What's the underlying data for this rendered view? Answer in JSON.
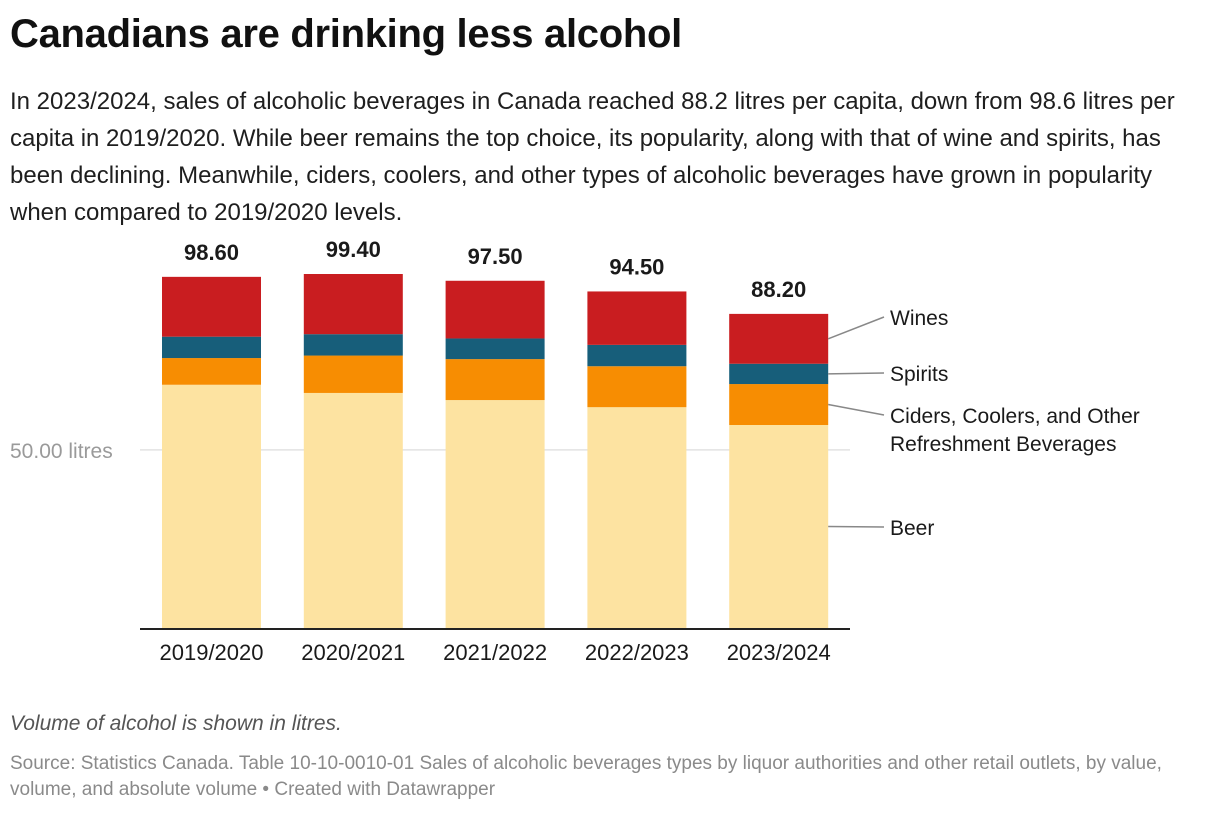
{
  "header": {
    "title": "Canadians are drinking less alcohol",
    "subtitle": "In 2023/2024, sales of alcoholic beverages in Canada reached 88.2 litres per capita, down from 98.6 litres per capita in 2019/2020. While beer remains the top choice, its popularity, along with that of wine and spirits, has been declining. Meanwhile, ciders, coolers, and other types of alcoholic beverages have grown in popularity when compared to 2019/2020 levels."
  },
  "footer": {
    "note": "Volume of alcohol is shown in litres.",
    "source": "Source: Statistics Canada. Table 10-10-0010-01 Sales of alcoholic beverages types by liquor authorities and other retail outlets, by value, volume, and absolute volume • Created with Datawrapper"
  },
  "chart_data": {
    "type": "bar",
    "stacked": true,
    "categories": [
      "2019/2020",
      "2020/2021",
      "2021/2022",
      "2022/2023",
      "2023/2024"
    ],
    "series": [
      {
        "name": "Beer",
        "color": "#fde3a1",
        "values": [
          68.3,
          66.0,
          64.0,
          62.0,
          57.0
        ]
      },
      {
        "name": "Ciders, Coolers, and Other Refreshment Beverages",
        "color": "#f78d02",
        "values": [
          7.5,
          10.5,
          11.5,
          11.5,
          11.5
        ]
      },
      {
        "name": "Spirits",
        "color": "#175e7a",
        "values": [
          6.0,
          6.0,
          5.8,
          6.0,
          5.7
        ]
      },
      {
        "name": "Wines",
        "color": "#c91d20",
        "values": [
          16.8,
          16.9,
          16.2,
          15.0,
          14.0
        ]
      }
    ],
    "totals": [
      "98.60",
      "99.40",
      "97.50",
      "94.50",
      "88.20"
    ],
    "legend_labels": {
      "wines": "Wines",
      "spirits": "Spirits",
      "ciders_line1": "Ciders, Coolers, and Other",
      "ciders_line2": "Refreshment Beverages",
      "beer": "Beer"
    },
    "gridline": {
      "value": 50,
      "label": "50.00 litres"
    },
    "ylim": [
      0,
      99.4
    ],
    "xlabel": "",
    "ylabel": ""
  }
}
